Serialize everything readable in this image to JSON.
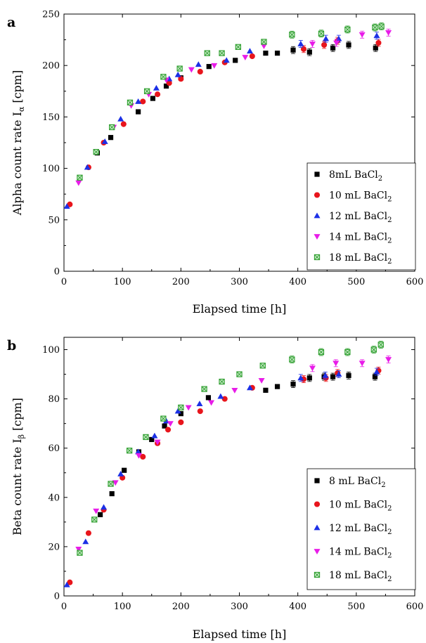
{
  "chart_data": [
    {
      "panel_label": "a",
      "type": "scatter",
      "xlabel": "Elapsed time [h]",
      "ylabel": "Alpha count rate I",
      "ylabel_sub": "α",
      "ylabel_unit": " [cpm]",
      "xlim": [
        0,
        600
      ],
      "ylim": [
        0,
        250
      ],
      "xticks": [
        0,
        100,
        200,
        300,
        400,
        500,
        600
      ],
      "yticks": [
        0,
        50,
        100,
        150,
        200,
        250
      ],
      "legend_position": "bottom-right",
      "series": [
        {
          "name": "8mL BaCl",
          "sub": "2",
          "marker": "square",
          "color": "#000000",
          "x": [
            57,
            80,
            127,
            152,
            175,
            200,
            248,
            293,
            345,
            365,
            392,
            420,
            460,
            487,
            533
          ],
          "y": [
            115,
            130,
            155,
            168,
            180,
            188,
            199,
            205,
            212,
            212,
            215,
            213,
            217,
            220,
            217
          ]
        },
        {
          "name": "10 mL BaCl",
          "sub": "2",
          "marker": "circle",
          "color": "#e8151c",
          "x": [
            10,
            42,
            68,
            102,
            135,
            160,
            180,
            200,
            233,
            275,
            322,
            410,
            445,
            468,
            538
          ],
          "y": [
            65,
            101,
            125,
            143,
            165,
            172,
            183,
            187,
            194,
            203,
            209,
            216,
            220,
            224,
            222
          ]
        },
        {
          "name": "12 mL BaCl",
          "sub": "2",
          "marker": "triangle-up",
          "color": "#1c30e6",
          "x": [
            5,
            40,
            70,
            97,
            127,
            158,
            180,
            195,
            230,
            278,
            318,
            405,
            448,
            470,
            535
          ],
          "y": [
            63,
            101,
            126,
            148,
            165,
            178,
            187,
            191,
            201,
            205,
            214,
            221,
            226,
            226,
            229
          ]
        },
        {
          "name": "14 mL BaCl",
          "sub": "2",
          "marker": "triangle-down",
          "color": "#e81ce8",
          "x": [
            25,
            55,
            85,
            115,
            145,
            175,
            218,
            257,
            310,
            342,
            425,
            466,
            510,
            555
          ],
          "y": [
            86,
            116,
            140,
            161,
            172,
            186,
            196,
            200,
            208,
            219,
            221,
            222,
            230,
            232
          ]
        },
        {
          "name": "18 mL BaCl",
          "sub": "2",
          "marker": "boxed-cross",
          "color": "#2e9e2e",
          "x": [
            27,
            55,
            82,
            113,
            142,
            170,
            198,
            245,
            270,
            298,
            342,
            390,
            440,
            485,
            532,
            543
          ],
          "y": [
            91,
            116,
            140,
            164,
            175,
            189,
            197,
            212,
            212,
            218,
            223,
            230,
            231,
            235,
            237,
            238
          ]
        }
      ]
    },
    {
      "panel_label": "b",
      "type": "scatter",
      "xlabel": "Elapsed time [h]",
      "ylabel": "Beta count rate I",
      "ylabel_sub": "β",
      "ylabel_unit": " [cpm]",
      "xlim": [
        0,
        600
      ],
      "ylim": [
        0,
        105
      ],
      "xticks": [
        0,
        100,
        200,
        300,
        400,
        500,
        600
      ],
      "yticks": [
        0,
        20,
        40,
        60,
        80,
        100
      ],
      "legend_position": "bottom-right",
      "series": [
        {
          "name": "8 mL BaCl",
          "sub": "2",
          "marker": "square",
          "color": "#000000",
          "x": [
            62,
            82,
            103,
            128,
            150,
            172,
            200,
            247,
            345,
            365,
            392,
            420,
            445,
            460,
            487,
            532
          ],
          "y": [
            33,
            41.5,
            51,
            58.5,
            63.5,
            69,
            74,
            80.5,
            83.5,
            85,
            86,
            88.5,
            89,
            89,
            89.5,
            89
          ]
        },
        {
          "name": "10 mL BaCl",
          "sub": "2",
          "marker": "circle",
          "color": "#e8151c",
          "x": [
            10,
            42,
            68,
            100,
            135,
            160,
            178,
            200,
            233,
            275,
            322,
            410,
            448,
            468,
            538
          ],
          "y": [
            5.5,
            25.5,
            35,
            48,
            56.5,
            62,
            67.5,
            70.5,
            75,
            80,
            84.5,
            88,
            88.5,
            90.5,
            91.5
          ]
        },
        {
          "name": "12 mL BaCl",
          "sub": "2",
          "marker": "triangle-up",
          "color": "#1c30e6",
          "x": [
            5,
            37,
            68,
            97,
            127,
            155,
            175,
            195,
            232,
            268,
            318,
            405,
            447,
            470,
            535
          ],
          "y": [
            4.5,
            22,
            36,
            49.5,
            58.5,
            65,
            71,
            75,
            78,
            81,
            84.5,
            88.5,
            89.5,
            90,
            91
          ]
        },
        {
          "name": "14 mL BaCl",
          "sub": "2",
          "marker": "triangle-down",
          "color": "#e81ce8",
          "x": [
            25,
            55,
            88,
            128,
            160,
            182,
            213,
            252,
            292,
            338,
            425,
            465,
            510,
            555
          ],
          "y": [
            19,
            34.5,
            46,
            57,
            62.5,
            70,
            76.5,
            78.5,
            83.5,
            87.5,
            92.5,
            94.5,
            94.5,
            96
          ]
        },
        {
          "name": "18 mL BaCl",
          "sub": "2",
          "marker": "boxed-cross",
          "color": "#2e9e2e",
          "x": [
            27,
            52,
            80,
            112,
            140,
            170,
            200,
            240,
            270,
            300,
            340,
            390,
            440,
            485,
            530,
            542
          ],
          "y": [
            17.5,
            31,
            45.5,
            59,
            64.5,
            72,
            76.5,
            84,
            87,
            90,
            93.5,
            96,
            99,
            99,
            100,
            102
          ]
        }
      ]
    }
  ]
}
